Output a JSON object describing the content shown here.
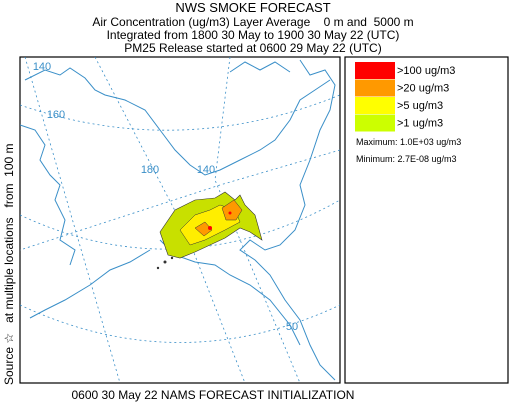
{
  "header": {
    "title": "NWS SMOKE FORECAST",
    "line1": "Air Concentration (ug/m3) Layer Average    0 m and  5000 m",
    "line2": "Integrated from 1800 30 May to 1900 30 May 22 (UTC)",
    "line3": "PM25 Release started at 0600 29 May 22 (UTC)"
  },
  "side_label": "Source ☆   at multiple locations   from  100 m",
  "map": {
    "labels": [
      "140",
      "160",
      "180",
      "140",
      "50"
    ]
  },
  "legend": {
    "items": [
      {
        "label": ">100 ug/m3",
        "color": "#ff0000"
      },
      {
        "label": ">20 ug/m3",
        "color": "#ff9900"
      },
      {
        "label": ">5 ug/m3",
        "color": "#ffff00"
      },
      {
        "label": ">1 ug/m3",
        "color": "#ccff00"
      }
    ],
    "maximum": "Maximum: 1.0E+03 ug/m3",
    "minimum": "Minimum: 2.7E-08 ug/m3"
  },
  "footer": "0600 30 May 22 NAMS FORECAST INITIALIZATION"
}
